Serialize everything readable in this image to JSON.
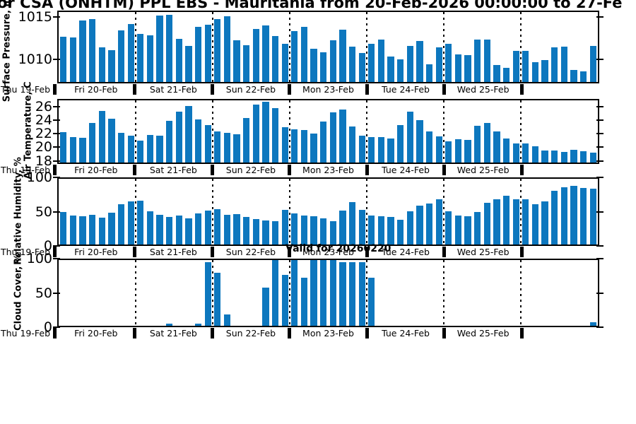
{
  "title": "or CSA (ONHTM) PPL EBS  - Mauritania from 20-Feb-2026 00:00:00 to 27-Fe",
  "annotation": {
    "text": "Valid for 20260220"
  },
  "colors": {
    "bar": "#0d77be",
    "frame": "#000000",
    "text": "#000000",
    "background": "#ffffff"
  },
  "x_axis": {
    "start_label": "Thu 19-Feb",
    "day_labels": [
      "Fri 20-Feb",
      "Sat 21-Feb",
      "Sun 22-Feb",
      "Mon 23-Feb",
      "Tue 24-Feb",
      "Wed 25-Feb"
    ],
    "day_sections": 7,
    "bars_per_day": 8
  },
  "chart_data": [
    {
      "type": "bar",
      "panel": "surface-pressure",
      "ylabel": "Surface Pressure, mb",
      "yticks": [
        1015,
        1010
      ],
      "ylim": [
        1007.2,
        1015.75
      ],
      "x_start": "20-Feb-2026 00:00",
      "x_step_hours": 3,
      "values": [
        1012.7,
        1012.6,
        1014.7,
        1014.9,
        1011.4,
        1011.1,
        1013.5,
        1014.3,
        1013.1,
        1012.9,
        1015.3,
        1015.4,
        1012.5,
        1011.6,
        1013.9,
        1014.2,
        1014.9,
        1015.2,
        1012.3,
        1011.7,
        1013.7,
        1014.1,
        1012.8,
        1011.9,
        1013.4,
        1013.9,
        1011.3,
        1010.8,
        1012.3,
        1013.6,
        1011.5,
        1010.7,
        1011.9,
        1012.4,
        1010.3,
        1010.0,
        1011.6,
        1012.2,
        1009.4,
        1011.4,
        1011.9,
        1010.6,
        1010.5,
        1012.4,
        1012.4,
        1009.3,
        1008.9,
        1011.0,
        1011.0,
        1009.6,
        1009.9,
        1011.4,
        1011.5,
        1008.7,
        1008.5,
        1011.6
      ]
    },
    {
      "type": "bar",
      "panel": "air-temperature",
      "ylabel": "Air Temperature, C",
      "yticks": [
        26,
        24,
        22,
        20,
        18
      ],
      "ylim": [
        17.55,
        27.1
      ],
      "x_start": "20-Feb-2026 00:00",
      "x_step_hours": 3,
      "values": [
        22.2,
        21.5,
        21.3,
        23.6,
        25.5,
        24.3,
        22.1,
        21.7,
        20.9,
        21.8,
        21.7,
        24.0,
        25.4,
        26.2,
        24.2,
        23.3,
        22.3,
        22.1,
        21.9,
        24.4,
        26.4,
        26.9,
        25.9,
        23.0,
        22.7,
        22.5,
        22.0,
        23.8,
        25.3,
        25.7,
        23.1,
        21.7,
        21.5,
        21.5,
        21.2,
        23.3,
        25.4,
        24.1,
        22.3,
        21.6,
        20.8,
        21.1,
        21.0,
        23.2,
        23.6,
        22.3,
        21.2,
        20.5,
        20.5,
        20.0,
        19.4,
        19.4,
        19.2,
        19.5,
        19.3,
        19.1
      ]
    },
    {
      "type": "bar",
      "panel": "relative-humidity",
      "ylabel": "Relative Humidity, %",
      "yticks": [
        100,
        50,
        0
      ],
      "ylim": [
        0,
        100.4
      ],
      "x_start": "20-Feb-2026 00:00",
      "x_step_hours": 3,
      "values": [
        50,
        44,
        43,
        45,
        41,
        49,
        62,
        66,
        67,
        51,
        45,
        42,
        44,
        40,
        47,
        52,
        54,
        45,
        46,
        42,
        39,
        37,
        36,
        53,
        47,
        44,
        43,
        40,
        36,
        52,
        65,
        53,
        44,
        43,
        42,
        38,
        51,
        59,
        63,
        69,
        51,
        44,
        43,
        50,
        64,
        69,
        74,
        69,
        69,
        62,
        66,
        82,
        88,
        90,
        86,
        85
      ]
    },
    {
      "type": "bar",
      "panel": "cloud-cover",
      "ylabel": "Cloud Cover, %",
      "yticks": [
        100,
        50,
        0
      ],
      "ylim": [
        0,
        100.4
      ],
      "x_start": "20-Feb-2026 00:00",
      "x_step_hours": 3,
      "values": [
        0,
        0,
        0,
        0,
        0,
        0,
        0,
        0,
        0,
        0,
        0,
        3,
        0,
        0,
        3,
        97,
        81,
        17,
        0,
        0,
        0,
        58,
        100,
        78,
        100,
        73,
        100,
        100,
        100,
        97,
        97,
        97,
        73,
        0,
        0,
        0,
        0,
        0,
        0,
        0,
        0,
        0,
        0,
        0,
        0,
        0,
        0,
        0,
        0,
        0,
        0,
        0,
        0,
        0,
        0,
        5
      ]
    }
  ]
}
